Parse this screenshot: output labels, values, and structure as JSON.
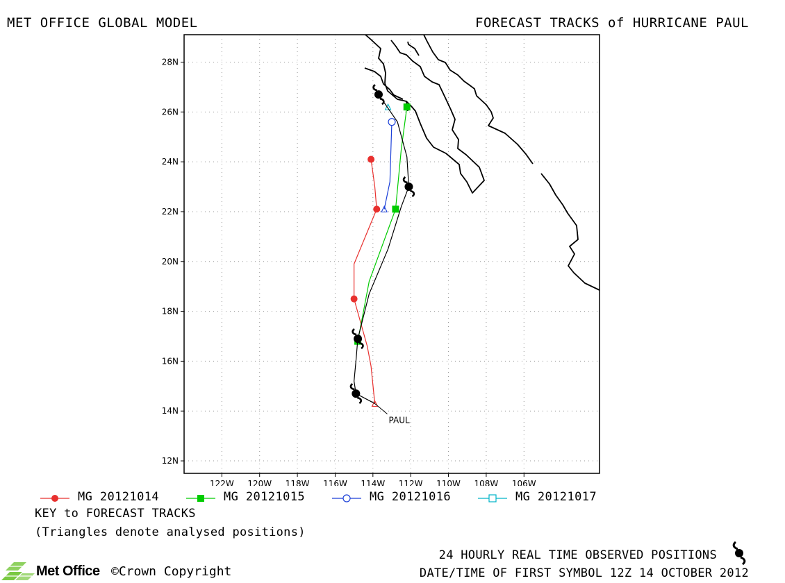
{
  "header": {
    "left_title": "MET OFFICE GLOBAL MODEL",
    "right_title": "FORECAST TRACKS of HURRICANE PAUL"
  },
  "map": {
    "lon_range": [
      -124,
      -102
    ],
    "lat_range": [
      11.5,
      29.1
    ],
    "lon_ticks": [
      "122W",
      "120W",
      "118W",
      "116W",
      "114W",
      "112W",
      "110W",
      "108W",
      "106W"
    ],
    "lat_ticks": [
      "12N",
      "14N",
      "16N",
      "18N",
      "20N",
      "22N",
      "24N",
      "26N",
      "28N"
    ],
    "storm_label": "PAUL",
    "colors": {
      "observed": "#000000",
      "mg_20121014": "#e8302e",
      "mg_20121015": "#00cc00",
      "mg_20121016": "#1a3fd8",
      "mg_20121017": "#00b4c8"
    }
  },
  "chart_data": {
    "type": "line",
    "title": "FORECAST TRACKS of HURRICANE PAUL",
    "xlabel": "",
    "ylabel": "",
    "xlim": [
      -124,
      -102
    ],
    "ylim": [
      11.5,
      29.1
    ],
    "grid": true,
    "legend_placement": "bottom",
    "series": [
      {
        "name": "observed",
        "marker": "hurricane-symbol",
        "color": "#000000",
        "points": [
          [
            -113.9,
            14.3
          ],
          [
            -114.9,
            14.7
          ],
          [
            -115.0,
            15.2
          ],
          [
            -114.9,
            16.0
          ],
          [
            -114.8,
            16.9
          ],
          [
            -114.2,
            18.7
          ],
          [
            -113.2,
            20.5
          ],
          [
            -112.5,
            22.2
          ],
          [
            -112.1,
            23.0
          ],
          [
            -112.2,
            24.2
          ],
          [
            -112.7,
            25.6
          ],
          [
            -113.7,
            26.7
          ]
        ],
        "symbols": [
          [
            -114.9,
            14.7
          ],
          [
            -114.8,
            16.9
          ],
          [
            -112.1,
            23.0
          ],
          [
            -113.7,
            26.7
          ]
        ]
      },
      {
        "name": "MG 20121014",
        "marker": "circle-filled",
        "color": "#e8302e",
        "points": [
          [
            -113.9,
            14.3
          ],
          [
            -114.1,
            15.8
          ],
          [
            -114.3,
            16.6
          ],
          [
            -115.0,
            18.5
          ],
          [
            -115.0,
            19.9
          ],
          [
            -113.8,
            22.1
          ],
          [
            -113.9,
            23.0
          ],
          [
            -114.1,
            24.1
          ]
        ],
        "markers": [
          [
            -115.0,
            18.5
          ],
          [
            -113.8,
            22.1
          ],
          [
            -114.1,
            24.1
          ]
        ],
        "analysed": [
          [
            -113.9,
            14.3
          ]
        ]
      },
      {
        "name": "MG 20121015",
        "marker": "square-filled",
        "color": "#00cc00",
        "points": [
          [
            -114.8,
            16.8
          ],
          [
            -114.2,
            19.2
          ],
          [
            -112.8,
            22.1
          ],
          [
            -112.5,
            24.5
          ],
          [
            -112.2,
            26.2
          ]
        ],
        "markers": [
          [
            -114.8,
            16.8
          ],
          [
            -112.8,
            22.1
          ],
          [
            -112.2,
            26.2
          ]
        ],
        "analysed": []
      },
      {
        "name": "MG 20121016",
        "marker": "circle-open",
        "color": "#1a3fd8",
        "points": [
          [
            -113.4,
            22.1
          ],
          [
            -113.1,
            23.2
          ],
          [
            -113.0,
            25.6
          ]
        ],
        "markers": [
          [
            -113.0,
            25.6
          ]
        ],
        "analysed": [
          [
            -113.4,
            22.1
          ]
        ]
      },
      {
        "name": "MG 20121017",
        "marker": "square-open",
        "color": "#00b4c8",
        "points": [
          [
            -113.2,
            26.2
          ]
        ],
        "markers": [],
        "analysed": [
          [
            -113.2,
            26.2
          ]
        ]
      }
    ]
  },
  "legend": {
    "items": [
      {
        "label": "MG 20121014",
        "color": "#e8302e",
        "marker": "circle-filled"
      },
      {
        "label": "MG 20121015",
        "color": "#00cc00",
        "marker": "square-filled"
      },
      {
        "label": "MG 20121016",
        "color": "#1a3fd8",
        "marker": "circle-open"
      },
      {
        "label": "MG 20121017",
        "color": "#00b4c8",
        "marker": "square-open"
      }
    ],
    "key_title": "KEY to FORECAST TRACKS",
    "key_note": "(Triangles denote analysed positions)"
  },
  "footer": {
    "observed_label": "24 HOURLY REAL TIME OBSERVED POSITIONS",
    "datetime_label": "DATE/TIME OF FIRST SYMBOL 12Z 14 OCTOBER 2012",
    "logo_text": "Met Office",
    "copyright": "©Crown Copyright"
  }
}
